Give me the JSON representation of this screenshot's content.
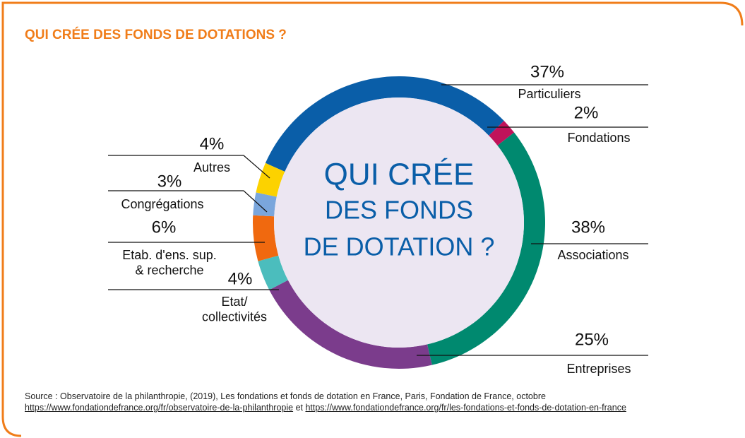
{
  "chart_data": {
    "type": "donut",
    "title": "QUI CRÉE DES FONDS DE DOTATIONS ?",
    "center_text": [
      "QUI CRÉE",
      "DES FONDS",
      "DE DOTATION ?"
    ],
    "categories": [
      "Particuliers",
      "Fondations",
      "Associations",
      "Entreprises",
      "Etat/\ncollectivités",
      "Etab. d'ens. sup.\n& recherche",
      "Congrégations",
      "Autres"
    ],
    "values": [
      37,
      2,
      38,
      25,
      4,
      6,
      3,
      4
    ],
    "value_labels": [
      "37%",
      "2%",
      "38%",
      "25%",
      "4%",
      "6%",
      "3%",
      "4%"
    ],
    "colors": [
      "#0a5ea8",
      "#c0135a",
      "#00896f",
      "#7b3c8c",
      "#4bbdbd",
      "#f0690f",
      "#7aa6dc",
      "#fcd200"
    ]
  },
  "source": {
    "text": "Source : Observatoire de la philanthropie, (2019), Les fondations et fonds de dotation en France, Paris, Fondation de France, octobre",
    "links": [
      "https://www.fondationdefrance.org/fr/observatoire-de-la-philanthropie",
      "https://www.fondationdefrance.org/fr/les-fondations-et-fonds-de-dotation-en-france"
    ],
    "joiner": "et"
  }
}
